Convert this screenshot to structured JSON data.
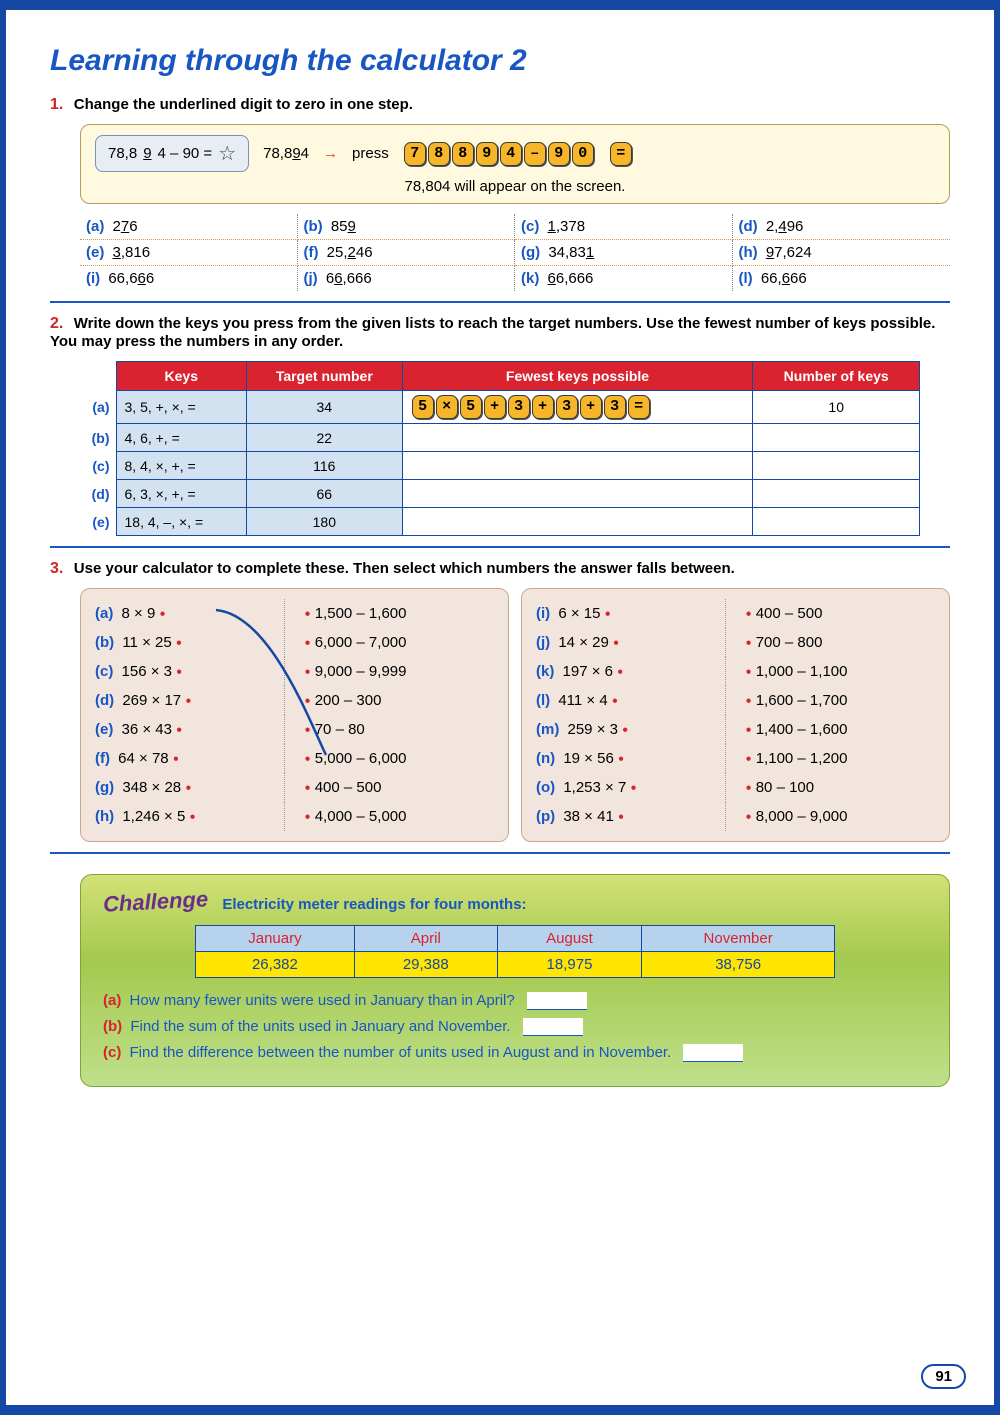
{
  "title": "Learning through the calculator 2",
  "q1": {
    "prompt": "Change the underlined digit to zero in one step.",
    "eq_pre": "78,8",
    "eq_under": "9",
    "eq_post": "4 – 90 =",
    "example_num_pre": "78,8",
    "example_num_under": "9",
    "example_num_post": "4",
    "press_keys": [
      "7",
      "8",
      "8",
      "9",
      "4",
      "–",
      "9",
      "0"
    ],
    "equals_key": "=",
    "note": "78,804 will appear on the screen.",
    "items": [
      {
        "lbl": "(a)",
        "pre": "2",
        "u": "7",
        "post": "6"
      },
      {
        "lbl": "(b)",
        "pre": "85",
        "u": "9",
        "post": ""
      },
      {
        "lbl": "(c)",
        "pre": "",
        "u": "1",
        "post": ",378"
      },
      {
        "lbl": "(d)",
        "pre": "2,",
        "u": "4",
        "post": "96"
      },
      {
        "lbl": "(e)",
        "pre": "",
        "u": "3",
        "post": ",816"
      },
      {
        "lbl": "(f)",
        "pre": "25,",
        "u": "2",
        "post": "46"
      },
      {
        "lbl": "(g)",
        "pre": "34,83",
        "u": "1",
        "post": ""
      },
      {
        "lbl": "(h)",
        "pre": "",
        "u": "9",
        "post": "7,624"
      },
      {
        "lbl": "(i)",
        "pre": "66,6",
        "u": "6",
        "post": "6"
      },
      {
        "lbl": "(j)",
        "pre": "6",
        "u": "6",
        "post": ",666"
      },
      {
        "lbl": "(k)",
        "pre": "",
        "u": "6",
        "post": "6,666"
      },
      {
        "lbl": "(l)",
        "pre": "66,",
        "u": "6",
        "post": "66"
      }
    ]
  },
  "q2": {
    "prompt": "Write down the keys you press from the given lists to reach the target numbers. Use the fewest number of keys possible. You may press the numbers in any order.",
    "headers": [
      "Keys",
      "Target number",
      "Fewest keys possible",
      "Number of keys"
    ],
    "rows": [
      {
        "lbl": "(a)",
        "keys": "3, 5, +, ×, =",
        "target": "34",
        "answer_keys": [
          "5",
          "×",
          "5",
          "+",
          "3",
          "+",
          "3",
          "+",
          "3",
          "="
        ],
        "count": "10"
      },
      {
        "lbl": "(b)",
        "keys": "4, 6, +, =",
        "target": "22",
        "answer_keys": [],
        "count": ""
      },
      {
        "lbl": "(c)",
        "keys": "8, 4, ×, +, =",
        "target": "116",
        "answer_keys": [],
        "count": ""
      },
      {
        "lbl": "(d)",
        "keys": "6, 3, ×, +, =",
        "target": "66",
        "answer_keys": [],
        "count": ""
      },
      {
        "lbl": "(e)",
        "keys": "18, 4, –, ×, =",
        "target": "180",
        "answer_keys": [],
        "count": ""
      }
    ]
  },
  "q3": {
    "prompt": "Use your calculator to complete these. Then select which numbers the answer falls between.",
    "left": {
      "problems": [
        {
          "lbl": "(a)",
          "t": "8 × 9"
        },
        {
          "lbl": "(b)",
          "t": "11 × 25"
        },
        {
          "lbl": "(c)",
          "t": "156 × 3"
        },
        {
          "lbl": "(d)",
          "t": "269 × 17"
        },
        {
          "lbl": "(e)",
          "t": "36 × 43"
        },
        {
          "lbl": "(f)",
          "t": "64 × 78"
        },
        {
          "lbl": "(g)",
          "t": "348 × 28"
        },
        {
          "lbl": "(h)",
          "t": "1,246 × 5"
        }
      ],
      "ranges": [
        "1,500 – 1,600",
        "6,000 – 7,000",
        "9,000 – 9,999",
        "200 – 300",
        "70 – 80",
        "5,000 – 6,000",
        "400 – 500",
        "4,000 – 5,000"
      ]
    },
    "right": {
      "problems": [
        {
          "lbl": "(i)",
          "t": "6 × 15"
        },
        {
          "lbl": "(j)",
          "t": "14 × 29"
        },
        {
          "lbl": "(k)",
          "t": "197 × 6"
        },
        {
          "lbl": "(l)",
          "t": "411 × 4"
        },
        {
          "lbl": "(m)",
          "t": "259 × 3"
        },
        {
          "lbl": "(n)",
          "t": "19 × 56"
        },
        {
          "lbl": "(o)",
          "t": "1,253 × 7"
        },
        {
          "lbl": "(p)",
          "t": "38 × 41"
        }
      ],
      "ranges": [
        "400 – 500",
        "700 – 800",
        "1,000 – 1,100",
        "1,600 – 1,700",
        "1,400 – 1,600",
        "1,100 – 1,200",
        "80 – 100",
        "8,000 – 9,000"
      ]
    }
  },
  "challenge": {
    "title": "Challenge",
    "subtitle": "Electricity meter readings for four months:",
    "months": [
      "January",
      "April",
      "August",
      "November"
    ],
    "values": [
      "26,382",
      "29,388",
      "18,975",
      "38,756"
    ],
    "qa": {
      "lbl": "(a)",
      "t": "How many fewer units were used in January than in April?"
    },
    "qb": {
      "lbl": "(b)",
      "t": "Find the sum of the units used in January and November."
    },
    "qc": {
      "lbl": "(c)",
      "t": "Find the difference between the number of units used in August and in November."
    }
  },
  "page_number": "91"
}
